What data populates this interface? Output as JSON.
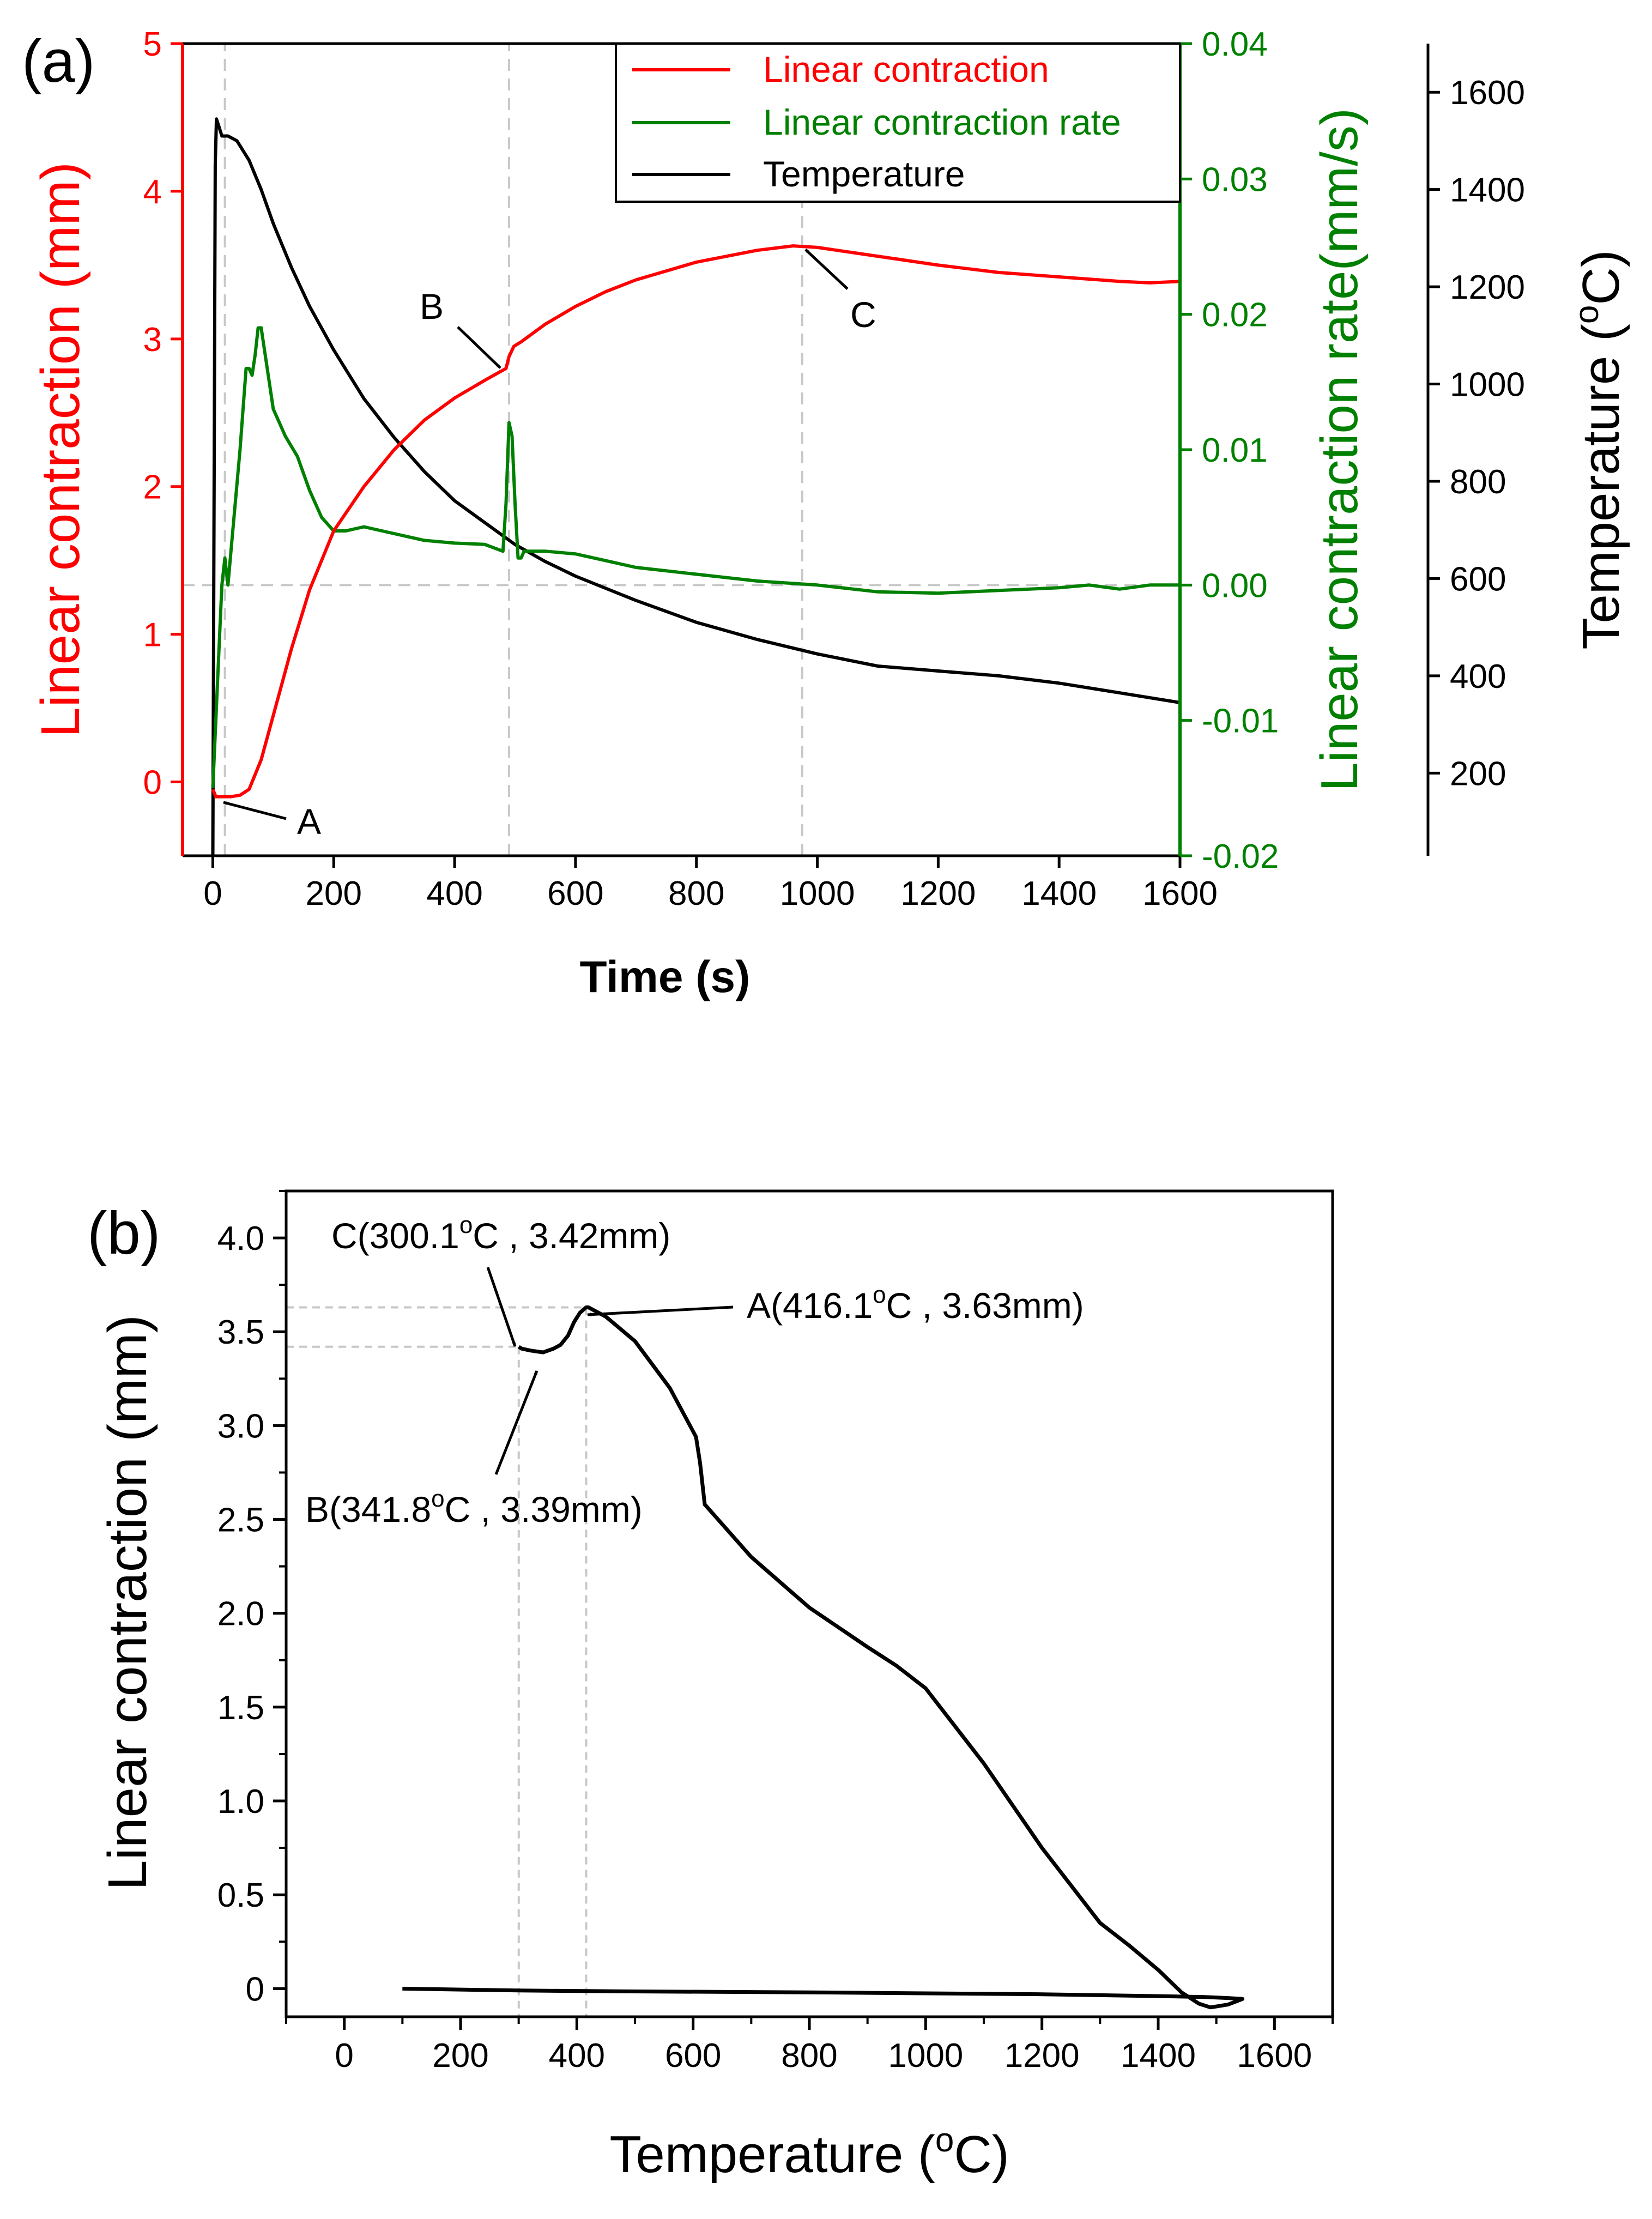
{
  "colors": {
    "contraction": "#ff0000",
    "rate": "#008000",
    "temperature": "#000000",
    "guide": "#c8c8c8"
  },
  "chart_data": [
    {
      "panel_label": "(a)",
      "type": "line",
      "xlabel": "Time (s)",
      "xlim": [
        -50,
        1600
      ],
      "xticks": [
        0,
        200,
        400,
        600,
        800,
        1000,
        1200,
        1400,
        1600
      ],
      "axes": {
        "left": {
          "label": "Linear contraction (mm)",
          "lim": [
            -0.5,
            5
          ],
          "ticks": [
            0,
            1,
            2,
            3,
            4,
            5
          ]
        },
        "right1": {
          "label": "Linear contraction rate(mm/s)",
          "lim": [
            -0.02,
            0.04
          ],
          "ticks": [
            "-0.02",
            "-0.01",
            "0.00",
            "0.01",
            "0.02",
            "0.03",
            "0.04"
          ]
        },
        "right2": {
          "label_prefix": "Temperature (",
          "label_sup": "o",
          "label_suffix": "C)",
          "lim": [
            30,
            1700
          ],
          "ticks": [
            200,
            400,
            600,
            800,
            1000,
            1200,
            1400,
            1600
          ]
        }
      },
      "legend": {
        "position": "top-right",
        "entries": [
          "Linear contraction",
          "Linear contraction rate",
          "Temperature"
        ]
      },
      "series": [
        {
          "name": "Linear contraction",
          "axis": "left",
          "x": [
            0,
            5,
            10,
            20,
            30,
            45,
            60,
            80,
            100,
            130,
            160,
            200,
            250,
            300,
            350,
            400,
            450,
            485,
            490,
            498,
            510,
            550,
            600,
            650,
            700,
            800,
            900,
            960,
            1000,
            1100,
            1200,
            1300,
            1400,
            1500,
            1550,
            1600
          ],
          "values": [
            -0.05,
            -0.1,
            -0.1,
            -0.1,
            -0.1,
            -0.09,
            -0.05,
            0.15,
            0.45,
            0.9,
            1.3,
            1.7,
            2.0,
            2.25,
            2.45,
            2.6,
            2.72,
            2.8,
            2.88,
            2.95,
            2.98,
            3.1,
            3.22,
            3.32,
            3.4,
            3.52,
            3.6,
            3.63,
            3.62,
            3.56,
            3.5,
            3.45,
            3.42,
            3.39,
            3.38,
            3.39
          ]
        },
        {
          "name": "Linear contraction rate",
          "axis": "right1",
          "x": [
            0,
            10,
            15,
            20,
            25,
            35,
            45,
            55,
            60,
            65,
            70,
            75,
            80,
            90,
            100,
            110,
            120,
            140,
            160,
            180,
            200,
            220,
            250,
            300,
            350,
            400,
            450,
            480,
            485,
            490,
            495,
            500,
            505,
            510,
            515,
            520,
            550,
            600,
            650,
            700,
            800,
            900,
            1000,
            1100,
            1200,
            1300,
            1400,
            1450,
            1500,
            1550,
            1600
          ],
          "values": [
            -0.015,
            -0.005,
            0.0,
            0.002,
            0.0,
            0.005,
            0.01,
            0.016,
            0.016,
            0.0155,
            0.017,
            0.019,
            0.019,
            0.016,
            0.013,
            0.012,
            0.011,
            0.0095,
            0.007,
            0.005,
            0.004,
            0.004,
            0.0043,
            0.0038,
            0.0033,
            0.0031,
            0.003,
            0.0025,
            0.006,
            0.012,
            0.011,
            0.006,
            0.002,
            0.002,
            0.0025,
            0.0025,
            0.0025,
            0.0023,
            0.0018,
            0.0013,
            0.0008,
            0.0003,
            0.0,
            -0.0005,
            -0.0006,
            -0.0004,
            -0.0002,
            0.0,
            -0.0003,
            0.0,
            0.0
          ]
        },
        {
          "name": "Temperature",
          "axis": "right2",
          "x": [
            0,
            4,
            6,
            10,
            15,
            25,
            40,
            50,
            60,
            80,
            100,
            130,
            160,
            200,
            250,
            300,
            350,
            400,
            450,
            500,
            550,
            600,
            700,
            800,
            900,
            1000,
            1100,
            1200,
            1300,
            1400,
            1500,
            1600
          ],
          "values": [
            30,
            1450,
            1545,
            1530,
            1510,
            1510,
            1500,
            1480,
            1460,
            1400,
            1330,
            1240,
            1160,
            1070,
            970,
            890,
            820,
            760,
            715,
            670,
            635,
            605,
            555,
            510,
            475,
            445,
            420,
            410,
            400,
            385,
            365,
            345
          ]
        }
      ],
      "annotations": [
        {
          "text": "A",
          "x": 20,
          "y": -0.1
        },
        {
          "text": "B",
          "x": 485,
          "y": 2.8
        },
        {
          "text": "C",
          "x": 975,
          "y": 3.63
        }
      ],
      "guides": {
        "vertical_x": [
          20,
          490,
          975
        ],
        "horizontal_rate": 0.0
      }
    },
    {
      "panel_label": "(b)",
      "type": "line",
      "xlabel_prefix": "Temperature (",
      "xlabel_sup": "o",
      "xlabel_suffix": "C)",
      "ylabel": "Linear contraction (mm)",
      "xlim": [
        -100,
        1700
      ],
      "ylim": [
        -0.15,
        4.25
      ],
      "xticks": [
        0,
        200,
        400,
        600,
        800,
        1000,
        1200,
        1400,
        1600
      ],
      "yticks": [
        "0",
        "0.5",
        "1.0",
        "1.5",
        "2.0",
        "2.5",
        "3.0",
        "3.5",
        "4.0"
      ],
      "series": [
        {
          "name": "Linear contraction",
          "x": [
            100,
            300,
            500,
            800,
            1000,
            1200,
            1400,
            1480,
            1520,
            1545,
            1520,
            1490,
            1470,
            1440,
            1400,
            1350,
            1300,
            1200,
            1100,
            1000,
            950,
            900,
            800,
            700,
            620,
            612,
            605,
            560,
            500,
            450,
            420,
            416,
            405,
            395,
            385,
            372,
            360,
            342,
            320,
            305,
            300
          ],
          "values": [
            0.0,
            -0.01,
            -0.015,
            -0.02,
            -0.025,
            -0.03,
            -0.04,
            -0.045,
            -0.05,
            -0.055,
            -0.085,
            -0.1,
            -0.08,
            -0.02,
            0.1,
            0.23,
            0.35,
            0.75,
            1.2,
            1.6,
            1.72,
            1.82,
            2.03,
            2.3,
            2.58,
            2.8,
            2.94,
            3.2,
            3.45,
            3.58,
            3.63,
            3.63,
            3.6,
            3.55,
            3.48,
            3.43,
            3.41,
            3.39,
            3.4,
            3.41,
            3.42
          ]
        }
      ],
      "annotations": [
        {
          "label": "A",
          "coords": "(416.1",
          "unit_sup": "o",
          "unit_rest": "C , 3.63mm)",
          "x": 416.1,
          "y": 3.63
        },
        {
          "label": "B",
          "coords": "(341.8",
          "unit_sup": "o",
          "unit_rest": "C , 3.39mm)",
          "x": 341.8,
          "y": 3.39
        },
        {
          "label": "C",
          "coords": "(300.1",
          "unit_sup": "o",
          "unit_rest": "C , 3.42mm)",
          "x": 300.1,
          "y": 3.42
        }
      ]
    }
  ]
}
